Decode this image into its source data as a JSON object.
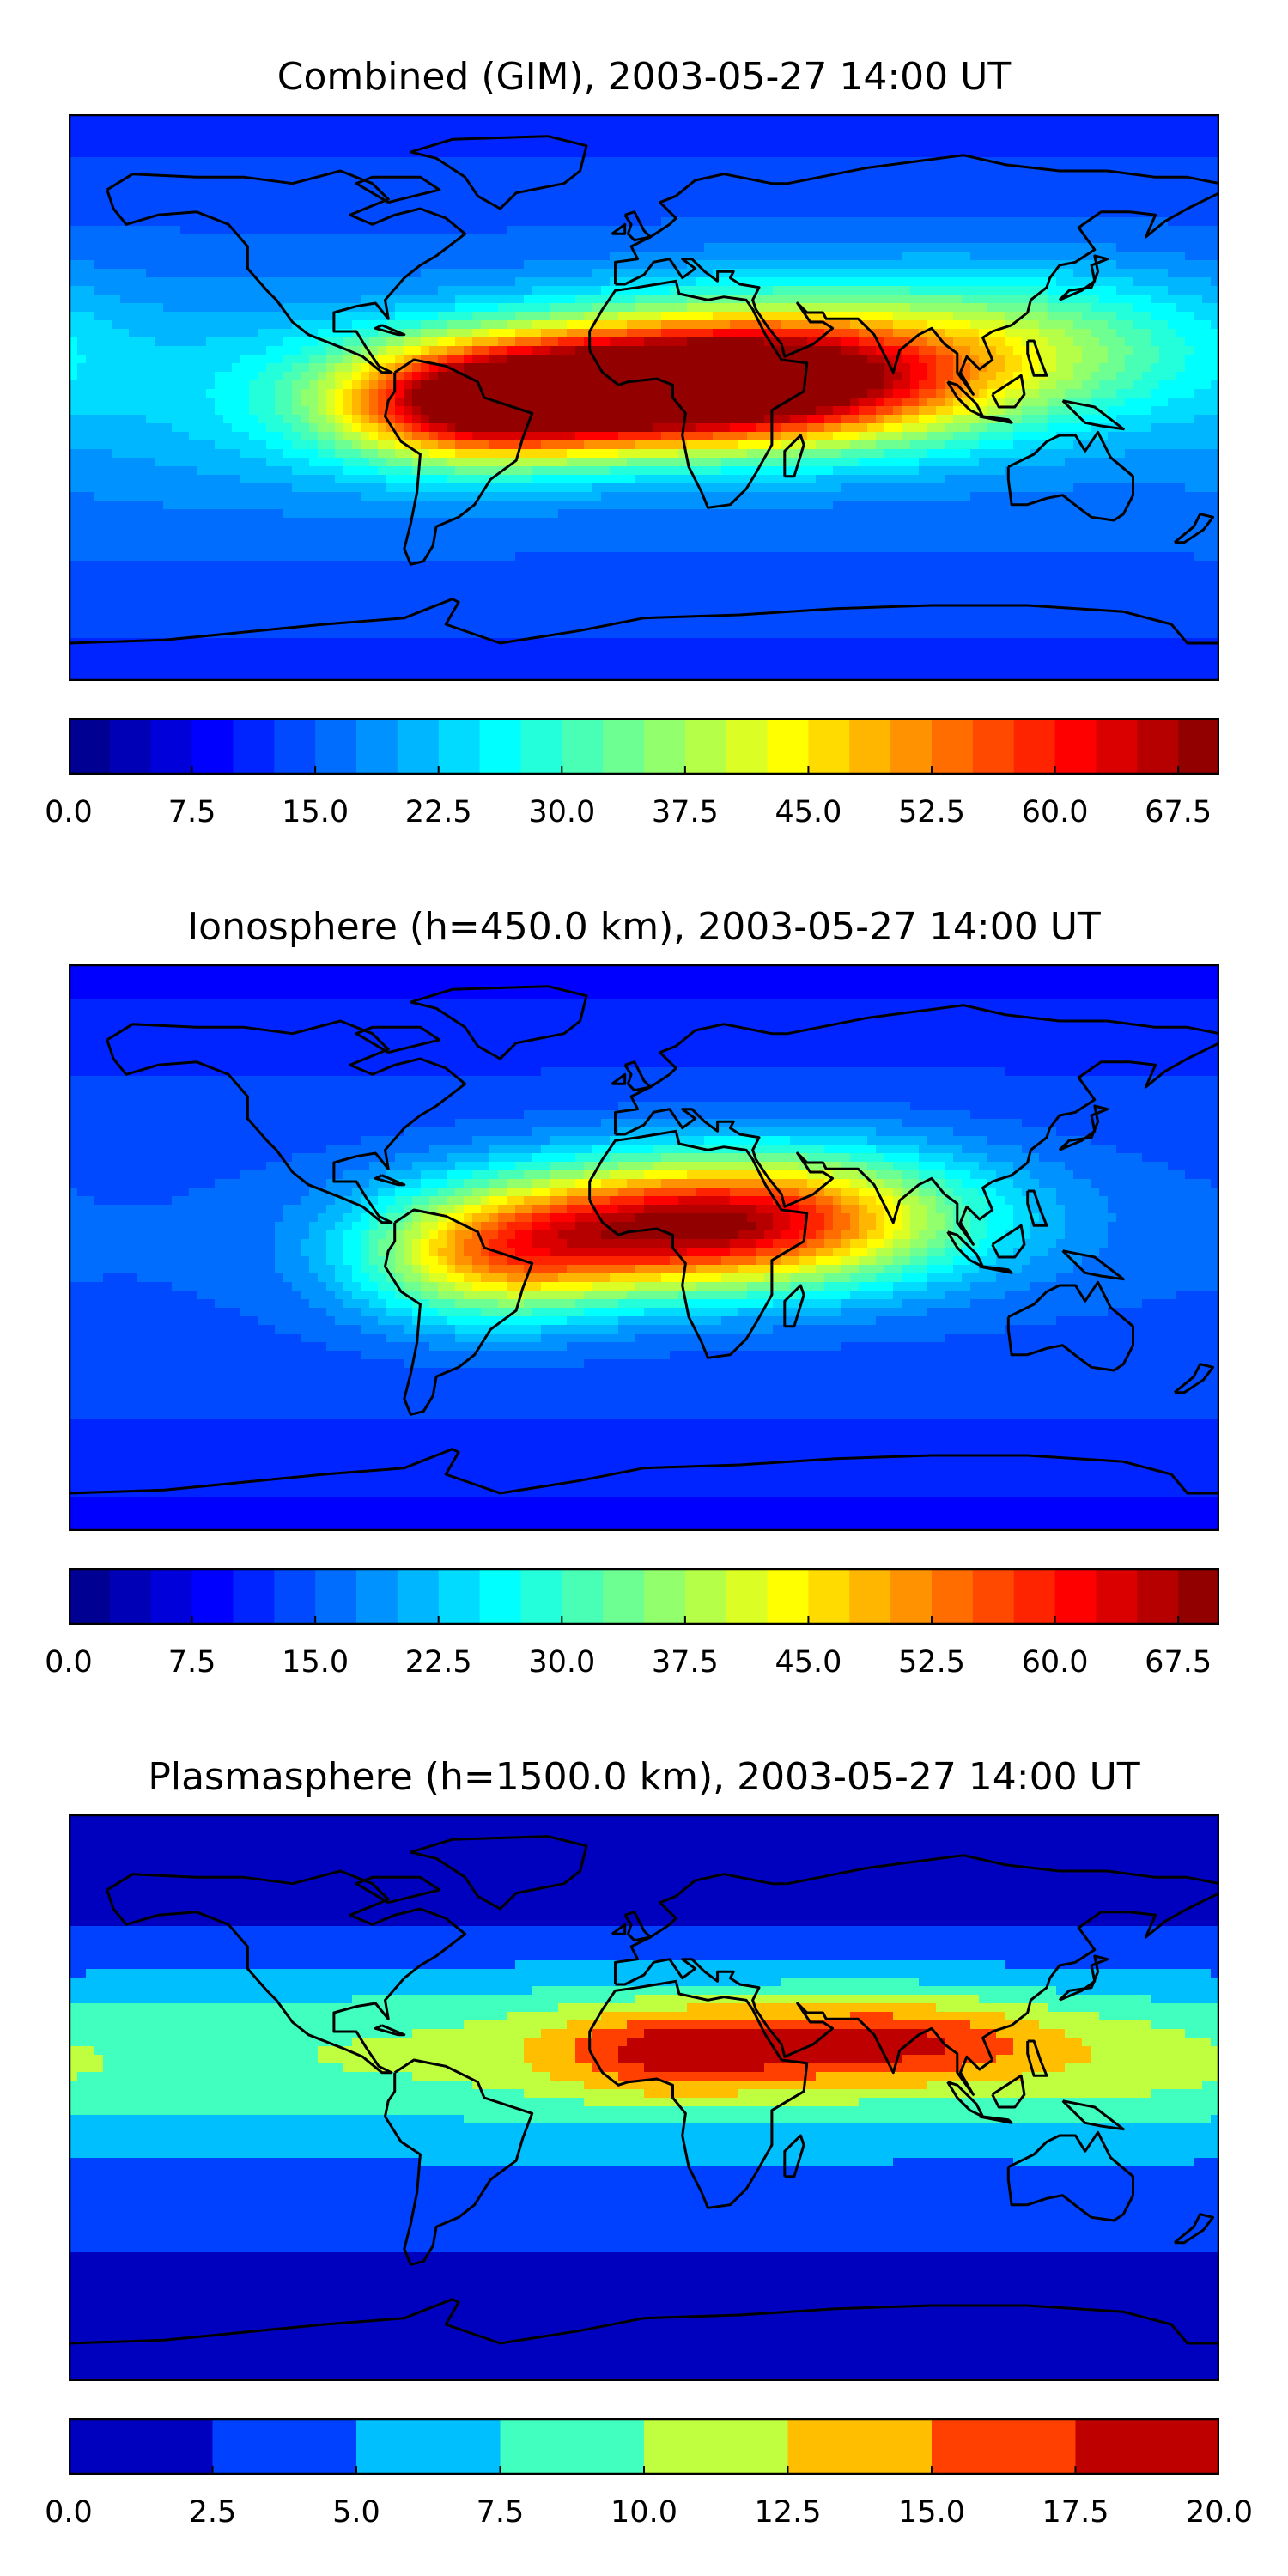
{
  "chart_data": [
    {
      "type": "heatmap",
      "title": "Combined (GIM), 2003-05-27 14:00 UT",
      "colorbar": {
        "tick_labels": [
          "0.0",
          "7.5",
          "15.0",
          "22.5",
          "30.0",
          "37.5",
          "45.0",
          "52.5",
          "60.0",
          "67.5"
        ],
        "levels": [
          0.0,
          2.5,
          5.0,
          7.5,
          10.0,
          12.5,
          15.0,
          17.5,
          20.0,
          22.5,
          25.0,
          27.5,
          30.0,
          32.5,
          35.0,
          37.5,
          40.0,
          42.5,
          45.0,
          47.5,
          50.0,
          52.5,
          55.0,
          57.5,
          60.0,
          62.5,
          65.0,
          67.5,
          70.0
        ],
        "range": [
          0.0,
          70.0
        ],
        "colormap": "jet"
      },
      "background_value": 15,
      "features": [
        {
          "lon": 20,
          "lat": 5,
          "sx": 55,
          "sy": 14,
          "amp": 50
        },
        {
          "lon": -55,
          "lat": -3,
          "sx": 30,
          "sy": 13,
          "amp": 35
        },
        {
          "lon": 60,
          "lat": 12,
          "sx": 55,
          "sy": 18,
          "amp": 18
        },
        {
          "lon": -10,
          "lat": 0,
          "sx": 40,
          "sy": 12,
          "amp": 18
        },
        {
          "lon": -120,
          "lat": 0,
          "sx": 50,
          "sy": 22,
          "amp": 6
        },
        {
          "lon": 130,
          "lat": 20,
          "sx": 40,
          "sy": 15,
          "amp": 10
        }
      ]
    },
    {
      "type": "heatmap",
      "title": "Ionosphere  (h=450.0 km), 2003-05-27 14:00 UT",
      "colorbar": {
        "tick_labels": [
          "0.0",
          "7.5",
          "15.0",
          "22.5",
          "30.0",
          "37.5",
          "45.0",
          "52.5",
          "60.0",
          "67.5"
        ],
        "levels": [
          0.0,
          2.5,
          5.0,
          7.5,
          10.0,
          12.5,
          15.0,
          17.5,
          20.0,
          22.5,
          25.0,
          27.5,
          30.0,
          32.5,
          35.0,
          37.5,
          40.0,
          42.5,
          45.0,
          47.5,
          50.0,
          52.5,
          55.0,
          57.5,
          60.0,
          62.5,
          65.0,
          67.5,
          70.0
        ],
        "range": [
          0.0,
          70.0
        ],
        "colormap": "jet"
      },
      "background_value": 13,
      "features": [
        {
          "lon": 15,
          "lat": 8,
          "sx": 50,
          "sy": 14,
          "amp": 38
        },
        {
          "lon": -50,
          "lat": -5,
          "sx": 28,
          "sy": 14,
          "amp": 22
        },
        {
          "lon": 50,
          "lat": 12,
          "sx": 45,
          "sy": 16,
          "amp": 14
        },
        {
          "lon": -10,
          "lat": 0,
          "sx": 40,
          "sy": 12,
          "amp": 10
        }
      ]
    },
    {
      "type": "heatmap",
      "title": "Plasmasphere (h=1500.0 km), 2003-05-27 14:00 UT",
      "colorbar": {
        "tick_labels": [
          "0.0",
          "2.5",
          "5.0",
          "7.5",
          "10.0",
          "12.5",
          "15.0",
          "17.5",
          "20.0"
        ],
        "levels": [
          0.0,
          2.5,
          5.0,
          7.5,
          10.0,
          12.5,
          15.0,
          17.5,
          20.0
        ],
        "range": [
          0.0,
          20.0
        ],
        "colormap": "jet"
      },
      "background_value": 2.5,
      "features": [
        {
          "lon": 0,
          "lat": 15,
          "sx": 200,
          "sy": 18,
          "amp": 6.5
        },
        {
          "lon": 10,
          "lat": 15,
          "sx": 28,
          "sy": 10,
          "amp": 8
        },
        {
          "lon": 80,
          "lat": 18,
          "sx": 35,
          "sy": 10,
          "amp": 8
        },
        {
          "lon": 160,
          "lat": 8,
          "sx": 30,
          "sy": 14,
          "amp": 2
        }
      ]
    }
  ]
}
